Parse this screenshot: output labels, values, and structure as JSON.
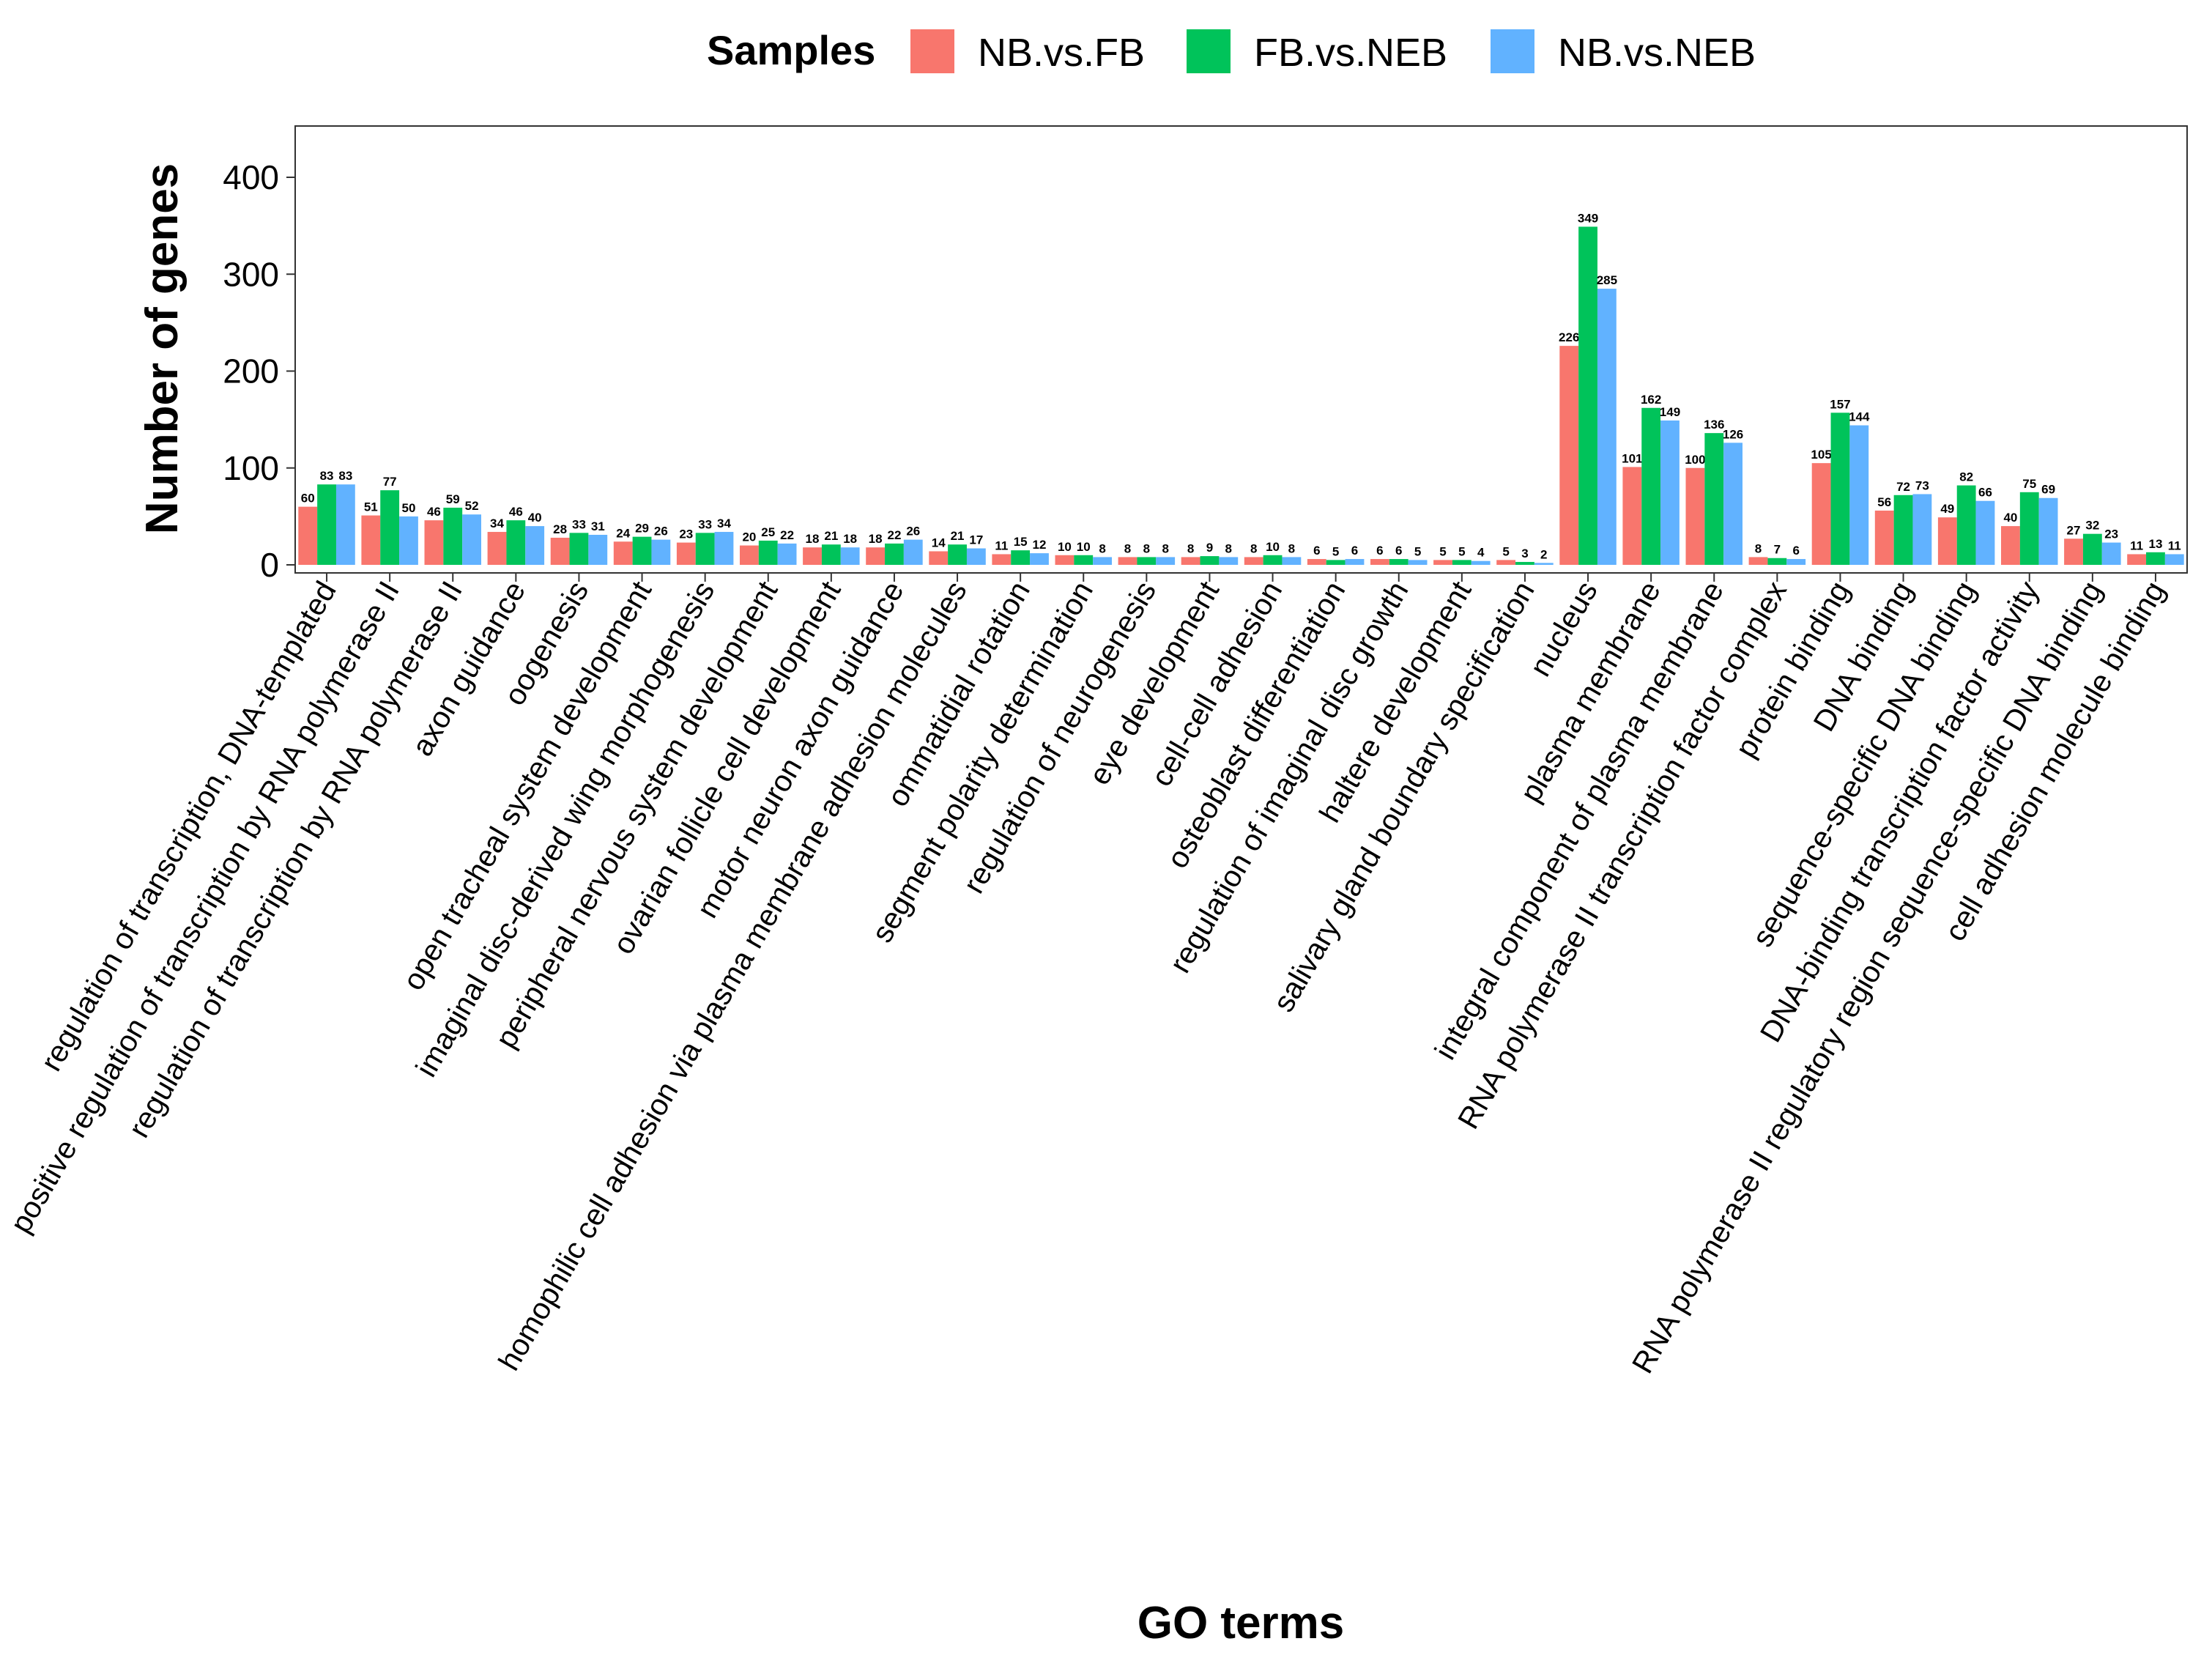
{
  "chart_data": {
    "type": "bar",
    "title": "",
    "xlabel": "GO terms",
    "ylabel": "Number of genes",
    "ylim": [
      0,
      460
    ],
    "yticks": [
      0,
      100,
      200,
      300,
      400
    ],
    "grid": false,
    "legend": {
      "title": "Samples",
      "position": "top"
    },
    "categories": [
      "regulation of transcription, DNA-templated",
      "positive regulation of transcription by RNA polymerase II",
      "regulation of transcription by RNA polymerase II",
      "axon guidance",
      "oogenesis",
      "open tracheal system development",
      "imaginal disc-derived wing morphogenesis",
      "peripheral nervous system development",
      "ovarian follicle cell development",
      "motor neuron axon guidance",
      "homophilic cell adhesion via plasma membrane adhesion molecules",
      "ommatidial rotation",
      "segment polarity determination",
      "regulation of neurogenesis",
      "eye development",
      "cell-cell adhesion",
      "osteoblast differentiation",
      "regulation of imaginal disc growth",
      "haltere development",
      "salivary gland boundary specification",
      "nucleus",
      "plasma membrane",
      "integral component of plasma membrane",
      "RNA polymerase II transcription factor complex",
      "protein binding",
      "DNA binding",
      "sequence-specific DNA binding",
      "DNA-binding transcription factor activity",
      "RNA polymerase II regulatory region sequence-specific DNA binding",
      "cell adhesion molecule binding"
    ],
    "series": [
      {
        "name": "NB.vs.FB",
        "color": "#F8766D",
        "values": [
          60,
          51,
          46,
          34,
          28,
          24,
          23,
          20,
          18,
          18,
          14,
          11,
          10,
          8,
          8,
          8,
          6,
          6,
          5,
          5,
          226,
          101,
          100,
          8,
          105,
          56,
          49,
          40,
          27,
          11
        ]
      },
      {
        "name": "FB.vs.NEB",
        "color": "#00C35A",
        "values": [
          83,
          77,
          59,
          46,
          33,
          29,
          33,
          25,
          21,
          22,
          21,
          15,
          10,
          8,
          9,
          10,
          5,
          6,
          5,
          3,
          349,
          162,
          136,
          7,
          157,
          72,
          82,
          75,
          32,
          13
        ]
      },
      {
        "name": "NB.vs.NEB",
        "color": "#61B2FF",
        "values": [
          83,
          50,
          52,
          40,
          31,
          26,
          34,
          22,
          18,
          26,
          17,
          12,
          8,
          8,
          8,
          8,
          6,
          5,
          4,
          2,
          285,
          149,
          126,
          6,
          144,
          73,
          66,
          69,
          23,
          11
        ]
      }
    ]
  }
}
